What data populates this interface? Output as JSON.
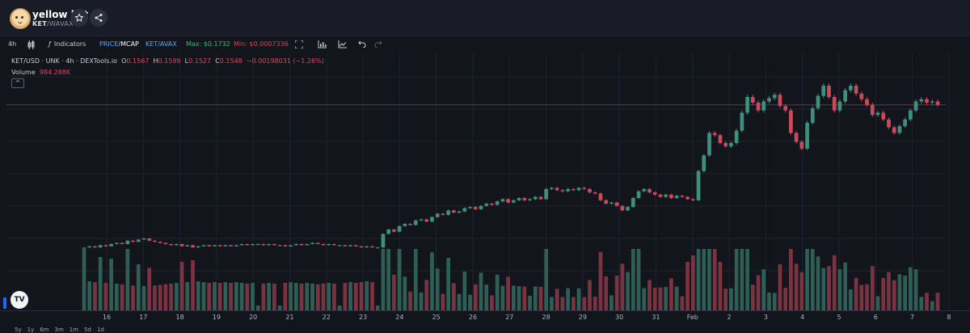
{
  "header": {
    "token_name": "yellow ket",
    "pair_base": "KET",
    "pair_sep": "/",
    "pair_quote": "WAVAX",
    "star_icon": "star-icon",
    "share_icon": "share-icon"
  },
  "toolbar": {
    "interval": "4h",
    "indicators_label": "Indicators",
    "price_label": "PRICE",
    "mcap_label": "MCAP",
    "pair_toggle": "KET/AVAX",
    "max_label": "Max: $0.1732",
    "min_label": "Min: $0.0007336"
  },
  "legend": {
    "symbol": "KET/USD · UNK · 4h · DEXTools.io",
    "o_label": "O",
    "o_value": "0.1567",
    "h_label": "H",
    "h_value": "0.1599",
    "l_label": "L",
    "l_value": "0.1527",
    "c_label": "C",
    "c_value": "0.1548",
    "change": "−0.00198031 (−1.26%)",
    "volume_label": "Volume",
    "volume_value": "984.288K",
    "collapse": "^"
  },
  "ranges": [
    "5y",
    "1y",
    "6m",
    "3m",
    "1m",
    "5d",
    "1d"
  ],
  "colors": {
    "up": "#3f8f7e",
    "down": "#c94a5a",
    "bg": "#13151d",
    "grid": "#1e2230"
  },
  "chart_data": {
    "type": "candlestick",
    "x_tick_labels": [
      "16",
      "17",
      "18",
      "19",
      "20",
      "21",
      "22",
      "23",
      "24",
      "25",
      "26",
      "27",
      "28",
      "29",
      "30",
      "31",
      "Feb",
      "2",
      "3",
      "4",
      "5",
      "6",
      "7",
      "8"
    ],
    "y_estimated_range": [
      0.0007,
      0.18
    ],
    "candles_close_estimates": [
      0.028,
      0.029,
      0.028,
      0.03,
      0.029,
      0.031,
      0.032,
      0.031,
      0.034,
      0.033,
      0.035,
      0.036,
      0.034,
      0.033,
      0.032,
      0.031,
      0.03,
      0.031,
      0.029,
      0.03,
      0.028,
      0.029,
      0.03,
      0.029,
      0.03,
      0.029,
      0.03,
      0.029,
      0.03,
      0.031,
      0.03,
      0.031,
      0.031,
      0.03,
      0.031,
      0.03,
      0.03,
      0.029,
      0.03,
      0.031,
      0.03,
      0.031,
      0.032,
      0.031,
      0.03,
      0.031,
      0.03,
      0.03,
      0.029,
      0.03,
      0.029,
      0.028,
      0.029,
      0.028,
      0.028,
      0.04,
      0.044,
      0.042,
      0.047,
      0.049,
      0.048,
      0.052,
      0.053,
      0.051,
      0.055,
      0.058,
      0.057,
      0.061,
      0.059,
      0.06,
      0.063,
      0.064,
      0.062,
      0.065,
      0.067,
      0.066,
      0.069,
      0.071,
      0.068,
      0.07,
      0.072,
      0.07,
      0.071,
      0.073,
      0.071,
      0.08,
      0.081,
      0.079,
      0.078,
      0.08,
      0.079,
      0.081,
      0.08,
      0.077,
      0.076,
      0.07,
      0.067,
      0.068,
      0.065,
      0.061,
      0.064,
      0.072,
      0.078,
      0.08,
      0.077,
      0.075,
      0.073,
      0.075,
      0.072,
      0.074,
      0.073,
      0.071,
      0.07,
      0.096,
      0.11,
      0.13,
      0.128,
      0.121,
      0.118,
      0.121,
      0.132,
      0.148,
      0.162,
      0.157,
      0.15,
      0.158,
      0.161,
      0.164,
      0.154,
      0.15,
      0.13,
      0.122,
      0.116,
      0.139,
      0.152,
      0.163,
      0.172,
      0.162,
      0.15,
      0.158,
      0.168,
      0.172,
      0.165,
      0.16,
      0.155,
      0.146,
      0.148,
      0.142,
      0.135,
      0.13,
      0.136,
      0.142,
      0.15,
      0.158,
      0.16,
      0.157,
      0.158,
      0.155
    ],
    "volume": {
      "label": "Volume",
      "last": "984.288K"
    }
  }
}
